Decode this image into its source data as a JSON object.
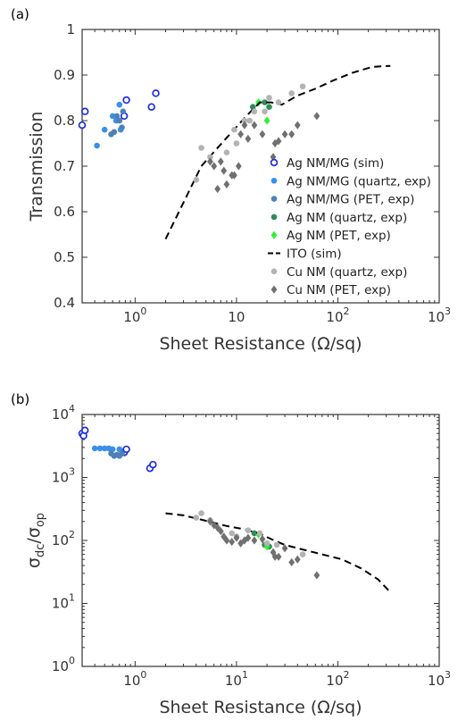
{
  "chart_data": [
    {
      "panel_label": "(a)",
      "type": "scatter",
      "xlabel": "Sheet Resistance (Ω/sq)",
      "ylabel": "Transmission",
      "xscale": "log",
      "xlim": [
        0.3,
        1000
      ],
      "ylim": [
        0.4,
        1.0
      ],
      "x_ticks": [
        {
          "value": 1,
          "base": "10",
          "exp": "0"
        },
        {
          "value": 10,
          "label": "10"
        },
        {
          "value": 100,
          "base": "10",
          "exp": "2"
        },
        {
          "value": 1000,
          "base": "10",
          "exp": "3"
        }
      ],
      "y_ticks": [
        {
          "value": 0.4,
          "label": "0.4"
        },
        {
          "value": 0.5,
          "label": "0.5"
        },
        {
          "value": 0.6,
          "label": "0.6"
        },
        {
          "value": 0.7,
          "label": "0.7"
        },
        {
          "value": 0.8,
          "label": "0.8"
        },
        {
          "value": 0.9,
          "label": "0.9"
        },
        {
          "value": 1.0,
          "label": "1"
        }
      ],
      "legend_position": "right",
      "series": [
        {
          "name": "Ag NM/MG (sim)",
          "marker": "open-circle",
          "color": "#1f2fd8",
          "points": [
            [
              0.3,
              0.79
            ],
            [
              0.32,
              0.82
            ],
            [
              0.78,
              0.81
            ],
            [
              0.82,
              0.845
            ],
            [
              1.45,
              0.83
            ],
            [
              1.6,
              0.86
            ]
          ]
        },
        {
          "name": "Ag NM/MG (quartz, exp)",
          "marker": "circle",
          "color": "#3a8fe8",
          "points": [
            [
              0.42,
              0.745
            ],
            [
              0.5,
              0.78
            ],
            [
              0.6,
              0.81
            ],
            [
              0.65,
              0.8
            ],
            [
              0.7,
              0.835
            ],
            [
              0.72,
              0.78
            ]
          ]
        },
        {
          "name": "Ag NM/MG (PET, exp)",
          "marker": "circle",
          "color": "#4f81b8",
          "points": [
            [
              0.58,
              0.77
            ],
            [
              0.62,
              0.775
            ],
            [
              0.66,
              0.81
            ],
            [
              0.7,
              0.8
            ],
            [
              0.74,
              0.785
            ],
            [
              0.76,
              0.82
            ]
          ]
        },
        {
          "name": "Ag NM (quartz, exp)",
          "marker": "circle",
          "color": "#2e8b57",
          "points": [
            [
              14.5,
              0.83
            ],
            [
              19,
              0.84
            ],
            [
              21,
              0.83
            ]
          ]
        },
        {
          "name": "Ag NM (PET, exp)",
          "marker": "diamond",
          "color": "#33ee33",
          "points": [
            [
              16.5,
              0.84
            ],
            [
              20,
              0.8
            ]
          ]
        },
        {
          "name": "ITO (sim)",
          "marker": "dashed-line",
          "color": "#000000",
          "points": [
            [
              2,
              0.54
            ],
            [
              3,
              0.62
            ],
            [
              4.5,
              0.7
            ],
            [
              6.5,
              0.74
            ],
            [
              9,
              0.775
            ],
            [
              12.5,
              0.81
            ],
            [
              17,
              0.84
            ],
            [
              22,
              0.84
            ],
            [
              28,
              0.835
            ],
            [
              40,
              0.855
            ],
            [
              60,
              0.87
            ],
            [
              90,
              0.888
            ],
            [
              140,
              0.905
            ],
            [
              220,
              0.918
            ],
            [
              330,
              0.92
            ]
          ]
        },
        {
          "name": "Cu NM (quartz, exp)",
          "marker": "circle",
          "color": "#b3b3b3",
          "points": [
            [
              4,
              0.67
            ],
            [
              4.5,
              0.74
            ],
            [
              5.5,
              0.72
            ],
            [
              8,
              0.73
            ],
            [
              9.5,
              0.78
            ],
            [
              10,
              0.75
            ],
            [
              12,
              0.8
            ],
            [
              13.5,
              0.8
            ],
            [
              15,
              0.82
            ],
            [
              19,
              0.82
            ],
            [
              21,
              0.85
            ],
            [
              26,
              0.84
            ],
            [
              35,
              0.86
            ],
            [
              45,
              0.875
            ]
          ]
        },
        {
          "name": "Cu NM (PET, exp)",
          "marker": "diamond",
          "color": "#707070",
          "points": [
            [
              5.5,
              0.71
            ],
            [
              6,
              0.7
            ],
            [
              6.5,
              0.65
            ],
            [
              7,
              0.71
            ],
            [
              7.5,
              0.69
            ],
            [
              8,
              0.66
            ],
            [
              9,
              0.68
            ],
            [
              9.5,
              0.68
            ],
            [
              10.5,
              0.7
            ],
            [
              11,
              0.77
            ],
            [
              12,
              0.79
            ],
            [
              13,
              0.76
            ],
            [
              15,
              0.79
            ],
            [
              18,
              0.77
            ],
            [
              23,
              0.72
            ],
            [
              24,
              0.75
            ],
            [
              26,
              0.755
            ],
            [
              30,
              0.77
            ],
            [
              35,
              0.77
            ],
            [
              40,
              0.79
            ],
            [
              62,
              0.81
            ]
          ]
        }
      ]
    },
    {
      "panel_label": "(b)",
      "type": "scatter",
      "xlabel": "Sheet Resistance (Ω/sq)",
      "ylabel_main": "σ",
      "ylabel_sub1": "dc",
      "ylabel_slash": "/σ",
      "ylabel_sub2": "op",
      "xscale": "log",
      "yscale": "log",
      "xlim": [
        0.3,
        1000
      ],
      "ylim": [
        1,
        10000
      ],
      "x_ticks": [
        {
          "value": 1,
          "base": "10",
          "exp": "0"
        },
        {
          "value": 10,
          "base": "10",
          "exp": "1"
        },
        {
          "value": 100,
          "base": "10",
          "exp": "2"
        },
        {
          "value": 1000,
          "base": "10",
          "exp": "3"
        }
      ],
      "y_ticks": [
        {
          "value": 1,
          "base": "10",
          "exp": "0"
        },
        {
          "value": 10,
          "base": "10",
          "exp": "1"
        },
        {
          "value": 100,
          "base": "10",
          "exp": "2"
        },
        {
          "value": 1000,
          "base": "10",
          "exp": "3"
        },
        {
          "value": 10000,
          "base": "10",
          "exp": "4"
        }
      ],
      "series": [
        {
          "name": "Ag NM/MG (sim)",
          "marker": "open-circle",
          "color": "#1f2fd8",
          "points": [
            [
              0.3,
              5000
            ],
            [
              0.31,
              4600
            ],
            [
              0.32,
              5600
            ],
            [
              0.78,
              2500
            ],
            [
              0.82,
              2800
            ],
            [
              1.4,
              1400
            ],
            [
              1.5,
              1600
            ]
          ]
        },
        {
          "name": "Ag NM/MG (quartz, exp)",
          "marker": "circle",
          "color": "#3a8fe8",
          "points": [
            [
              0.4,
              2900
            ],
            [
              0.45,
              2900
            ],
            [
              0.5,
              2900
            ],
            [
              0.55,
              2900
            ],
            [
              0.6,
              2800
            ],
            [
              0.7,
              2800
            ]
          ]
        },
        {
          "name": "Ag NM/MG (PET, exp)",
          "marker": "circle",
          "color": "#4f81b8",
          "points": [
            [
              0.58,
              2400
            ],
            [
              0.62,
              2200
            ],
            [
              0.66,
              2300
            ],
            [
              0.7,
              2200
            ],
            [
              0.74,
              2400
            ]
          ]
        },
        {
          "name": "Ag NM (quartz, exp)",
          "marker": "circle",
          "color": "#2e8b57",
          "points": [
            [
              15,
              130
            ],
            [
              19,
              85
            ],
            [
              21,
              80
            ]
          ]
        },
        {
          "name": "Ag NM (PET, exp)",
          "marker": "diamond",
          "color": "#33ee33",
          "points": [
            [
              16.5,
              125
            ],
            [
              20,
              80
            ]
          ]
        },
        {
          "name": "ITO (sim)",
          "marker": "dashed-line",
          "color": "#000000",
          "points": [
            [
              2,
              270
            ],
            [
              3,
              250
            ],
            [
              5,
              205
            ],
            [
              8,
              170
            ],
            [
              12,
              150
            ],
            [
              17,
              128
            ],
            [
              22,
              105
            ],
            [
              30,
              85
            ],
            [
              45,
              72
            ],
            [
              70,
              60
            ],
            [
              110,
              50
            ],
            [
              170,
              36
            ],
            [
              250,
              24
            ],
            [
              330,
              15
            ]
          ]
        },
        {
          "name": "Cu NM (quartz, exp)",
          "marker": "circle",
          "color": "#b3b3b3",
          "points": [
            [
              4,
              230
            ],
            [
              4.5,
              270
            ],
            [
              5.5,
              210
            ],
            [
              9,
              130
            ],
            [
              10,
              115
            ],
            [
              13,
              145
            ],
            [
              17,
              130
            ],
            [
              20,
              90
            ],
            [
              25,
              85
            ],
            [
              45,
              60
            ]
          ]
        },
        {
          "name": "Cu NM (PET, exp)",
          "marker": "diamond",
          "color": "#707070",
          "points": [
            [
              5.5,
              200
            ],
            [
              6,
              175
            ],
            [
              6.5,
              160
            ],
            [
              7,
              140
            ],
            [
              7.5,
              115
            ],
            [
              8,
              100
            ],
            [
              9,
              95
            ],
            [
              10,
              110
            ],
            [
              11,
              90
            ],
            [
              12,
              100
            ],
            [
              13,
              110
            ],
            [
              15,
              100
            ],
            [
              18,
              105
            ],
            [
              23,
              65
            ],
            [
              24,
              55
            ],
            [
              26,
              55
            ],
            [
              30,
              75
            ],
            [
              35,
              45
            ],
            [
              40,
              50
            ],
            [
              62,
              28
            ]
          ]
        }
      ]
    }
  ]
}
